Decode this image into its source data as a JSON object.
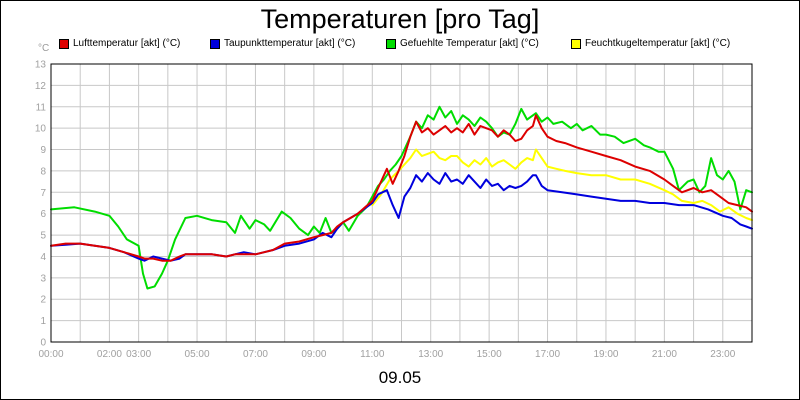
{
  "chart_data": {
    "type": "line",
    "title": "Temperaturen [pro Tag]",
    "unit": "°C",
    "date_label": "09.05",
    "xlabel": "",
    "ylabel": "",
    "xlim": [
      0,
      24
    ],
    "ylim": [
      0,
      13
    ],
    "y_ticks": [
      "0",
      "1",
      "2",
      "3",
      "4",
      "5",
      "6",
      "7",
      "8",
      "9",
      "10",
      "11",
      "12",
      "13"
    ],
    "x_ticks": [
      {
        "h": 0,
        "label": "00:00"
      },
      {
        "h": 2,
        "label": "02:00"
      },
      {
        "h": 3,
        "label": "03:00"
      },
      {
        "h": 5,
        "label": "05:00"
      },
      {
        "h": 7,
        "label": "07:00"
      },
      {
        "h": 9,
        "label": "09:00"
      },
      {
        "h": 11,
        "label": "11:00"
      },
      {
        "h": 13,
        "label": "13:00"
      },
      {
        "h": 15,
        "label": "15:00"
      },
      {
        "h": 17,
        "label": "17:00"
      },
      {
        "h": 19,
        "label": "19:00"
      },
      {
        "h": 21,
        "label": "21:00"
      },
      {
        "h": 23,
        "label": "23:00"
      }
    ],
    "grid": true,
    "legend_position": "top",
    "series": [
      {
        "name": "Gefuehlte Temperatur [akt] (°C)",
        "color": "#00dd00",
        "x": [
          0,
          0.8,
          1.5,
          2.0,
          2.3,
          2.6,
          3.0,
          3.15,
          3.3,
          3.55,
          3.8,
          4.0,
          4.25,
          4.6,
          5.0,
          5.5,
          6.0,
          6.3,
          6.5,
          6.8,
          7.0,
          7.3,
          7.5,
          7.9,
          8.2,
          8.5,
          8.8,
          9.0,
          9.2,
          9.4,
          9.6,
          9.8,
          10.0,
          10.2,
          10.5,
          10.8,
          11.0,
          11.2,
          11.4,
          11.6,
          11.8,
          12.0,
          12.3,
          12.5,
          12.7,
          12.9,
          13.1,
          13.3,
          13.5,
          13.7,
          13.9,
          14.1,
          14.3,
          14.5,
          14.7,
          14.9,
          15.1,
          15.3,
          15.5,
          15.7,
          15.9,
          16.1,
          16.3,
          16.6,
          16.8,
          17.0,
          17.2,
          17.5,
          17.8,
          18.0,
          18.2,
          18.5,
          18.8,
          19.0,
          19.3,
          19.6,
          20.0,
          20.3,
          20.5,
          20.8,
          21.0,
          21.3,
          21.5,
          21.8,
          22.0,
          22.2,
          22.4,
          22.6,
          22.8,
          23.0,
          23.2,
          23.4,
          23.6,
          23.8,
          24.0
        ],
        "values": [
          6.2,
          6.3,
          6.1,
          5.9,
          5.4,
          4.8,
          4.5,
          3.2,
          2.5,
          2.6,
          3.2,
          3.8,
          4.8,
          5.8,
          5.9,
          5.7,
          5.6,
          5.1,
          5.9,
          5.3,
          5.7,
          5.5,
          5.2,
          6.1,
          5.8,
          5.3,
          5.0,
          5.4,
          5.1,
          5.8,
          5.1,
          5.3,
          5.6,
          5.2,
          5.9,
          6.3,
          6.8,
          7.3,
          7.6,
          8.0,
          8.3,
          8.7,
          9.6,
          10.3,
          10.0,
          10.6,
          10.4,
          11.0,
          10.5,
          10.8,
          10.2,
          10.6,
          10.4,
          10.1,
          10.5,
          10.3,
          10.0,
          9.6,
          9.8,
          9.7,
          10.2,
          10.9,
          10.4,
          10.7,
          10.3,
          10.5,
          10.2,
          10.3,
          10.0,
          10.2,
          9.9,
          10.1,
          9.7,
          9.7,
          9.6,
          9.3,
          9.5,
          9.2,
          9.1,
          8.9,
          8.9,
          8.1,
          7.1,
          7.5,
          7.6,
          7.0,
          7.3,
          8.6,
          7.8,
          7.6,
          8.0,
          7.5,
          6.2,
          7.1,
          7.0
        ]
      },
      {
        "name": "Feuchtkugeltemperatur [akt] (°C)",
        "color": "#ffff00",
        "x": [
          11.0,
          11.3,
          11.6,
          11.9,
          12.1,
          12.3,
          12.5,
          12.7,
          12.9,
          13.1,
          13.3,
          13.5,
          13.7,
          13.9,
          14.1,
          14.3,
          14.5,
          14.7,
          14.9,
          15.1,
          15.3,
          15.5,
          15.7,
          15.9,
          16.1,
          16.3,
          16.5,
          16.6,
          16.8,
          17.0,
          17.3,
          17.6,
          18.0,
          18.5,
          19.0,
          19.5,
          20.0,
          20.5,
          21.0,
          21.3,
          21.6,
          22.0,
          22.3,
          22.6,
          22.9,
          23.2,
          23.5,
          23.8,
          24.0
        ],
        "values": [
          6.4,
          6.9,
          7.6,
          8.0,
          8.3,
          8.6,
          9.0,
          8.7,
          8.8,
          8.9,
          8.6,
          8.5,
          8.7,
          8.7,
          8.4,
          8.2,
          8.5,
          8.3,
          8.6,
          8.2,
          8.4,
          8.5,
          8.3,
          8.1,
          8.4,
          8.6,
          8.5,
          9.0,
          8.6,
          8.2,
          8.1,
          8.0,
          7.9,
          7.8,
          7.8,
          7.6,
          7.6,
          7.4,
          7.1,
          6.9,
          6.6,
          6.5,
          6.6,
          6.4,
          6.1,
          6.3,
          6.0,
          5.8,
          5.7
        ]
      },
      {
        "name": "Taupunkttemperatur [akt] (°C)",
        "color": "#0000dd",
        "x": [
          0,
          0.5,
          1.0,
          1.5,
          2.0,
          2.5,
          3.0,
          3.2,
          3.5,
          3.8,
          4.1,
          4.4,
          4.6,
          5.0,
          5.5,
          6.0,
          6.3,
          6.6,
          7.0,
          7.3,
          7.6,
          8.0,
          8.5,
          9.0,
          9.3,
          9.6,
          9.8,
          10.0,
          10.5,
          11.0,
          11.2,
          11.5,
          11.7,
          11.9,
          12.1,
          12.3,
          12.5,
          12.7,
          12.9,
          13.1,
          13.3,
          13.5,
          13.7,
          13.9,
          14.1,
          14.3,
          14.5,
          14.7,
          14.9,
          15.1,
          15.3,
          15.5,
          15.7,
          15.9,
          16.1,
          16.3,
          16.5,
          16.6,
          16.8,
          17.0,
          17.5,
          18.0,
          18.5,
          19.0,
          19.5,
          20.0,
          20.5,
          21.0,
          21.5,
          22.0,
          22.5,
          23.0,
          23.3,
          23.6,
          23.8,
          24.0
        ],
        "values": [
          4.5,
          4.55,
          4.6,
          4.5,
          4.4,
          4.2,
          3.9,
          3.8,
          4.0,
          3.9,
          3.8,
          3.9,
          4.1,
          4.1,
          4.1,
          4.0,
          4.1,
          4.2,
          4.1,
          4.2,
          4.3,
          4.5,
          4.6,
          4.8,
          5.1,
          4.9,
          5.3,
          5.6,
          6.0,
          6.5,
          6.9,
          7.1,
          6.4,
          5.8,
          6.8,
          7.2,
          7.8,
          7.5,
          7.9,
          7.6,
          7.4,
          7.9,
          7.5,
          7.6,
          7.4,
          7.8,
          7.5,
          7.2,
          7.6,
          7.3,
          7.4,
          7.1,
          7.3,
          7.2,
          7.3,
          7.5,
          7.8,
          7.8,
          7.3,
          7.1,
          7.0,
          6.9,
          6.8,
          6.7,
          6.6,
          6.6,
          6.5,
          6.5,
          6.4,
          6.4,
          6.2,
          5.9,
          5.8,
          5.5,
          5.4,
          5.3
        ]
      },
      {
        "name": "Lufttemperatur [akt] (°C)",
        "color": "#dd0000",
        "x": [
          0,
          0.5,
          1.0,
          1.5,
          2.0,
          2.5,
          3.0,
          3.2,
          3.5,
          3.8,
          4.1,
          4.4,
          4.6,
          5.0,
          5.5,
          6.0,
          6.3,
          6.6,
          7.0,
          7.3,
          7.6,
          8.0,
          8.5,
          9.0,
          9.3,
          9.6,
          9.8,
          10.0,
          10.5,
          11.0,
          11.2,
          11.5,
          11.7,
          11.9,
          12.1,
          12.3,
          12.5,
          12.7,
          12.9,
          13.1,
          13.3,
          13.5,
          13.7,
          13.9,
          14.1,
          14.3,
          14.5,
          14.7,
          14.9,
          15.1,
          15.3,
          15.5,
          15.7,
          15.9,
          16.1,
          16.3,
          16.5,
          16.6,
          16.8,
          17.0,
          17.3,
          17.6,
          18.0,
          18.5,
          19.0,
          19.5,
          20.0,
          20.5,
          21.0,
          21.3,
          21.6,
          22.0,
          22.3,
          22.6,
          22.9,
          23.2,
          23.5,
          23.8,
          24.0
        ],
        "values": [
          4.5,
          4.6,
          4.6,
          4.5,
          4.4,
          4.2,
          4.0,
          3.9,
          3.9,
          3.8,
          3.8,
          4.0,
          4.1,
          4.1,
          4.1,
          4.0,
          4.1,
          4.1,
          4.1,
          4.2,
          4.3,
          4.6,
          4.7,
          4.9,
          5.0,
          5.1,
          5.4,
          5.6,
          6.0,
          6.6,
          7.2,
          8.1,
          7.4,
          8.0,
          8.7,
          9.6,
          10.3,
          9.8,
          10.0,
          9.7,
          9.9,
          10.1,
          9.8,
          10.0,
          9.8,
          10.2,
          9.7,
          10.1,
          10.0,
          9.9,
          9.6,
          9.9,
          9.7,
          9.4,
          9.5,
          9.9,
          10.1,
          10.6,
          10.0,
          9.6,
          9.4,
          9.3,
          9.1,
          8.9,
          8.7,
          8.5,
          8.2,
          8.0,
          7.6,
          7.3,
          7.0,
          7.2,
          7.0,
          7.1,
          6.8,
          6.5,
          6.4,
          6.3,
          6.1
        ]
      }
    ],
    "legend": [
      {
        "label": "Lufttemperatur [akt] (°C)",
        "color": "#dd0000"
      },
      {
        "label": "Taupunkttemperatur [akt] (°C)",
        "color": "#0000dd"
      },
      {
        "label": "Gefuehlte Temperatur [akt] (°C)",
        "color": "#00dd00"
      },
      {
        "label": "Feuchtkugeltemperatur [akt] (°C)",
        "color": "#ffff00"
      }
    ]
  }
}
